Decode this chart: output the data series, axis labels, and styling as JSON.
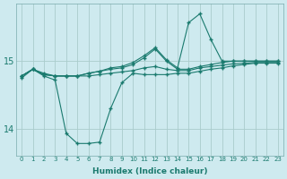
{
  "title": "",
  "xlabel": "Humidex (Indice chaleur)",
  "ylabel": "",
  "bg_color": "#ceeaef",
  "line_color": "#1a7a6e",
  "grid_color": "#aacccc",
  "xlim": [
    -0.5,
    23.5
  ],
  "ylim": [
    13.6,
    15.85
  ],
  "yticks": [
    14,
    15
  ],
  "xticks": [
    0,
    1,
    2,
    3,
    4,
    5,
    6,
    7,
    8,
    9,
    10,
    11,
    12,
    13,
    14,
    15,
    16,
    17,
    18,
    19,
    20,
    21,
    22,
    23
  ],
  "series": [
    {
      "x": [
        0,
        1,
        2,
        3,
        4,
        5,
        6,
        7,
        8,
        9,
        10,
        11,
        12,
        13,
        14,
        15,
        16,
        17,
        18,
        19,
        20,
        21,
        22,
        23
      ],
      "y": [
        14.78,
        14.88,
        14.8,
        14.78,
        14.78,
        14.78,
        14.78,
        14.8,
        14.82,
        14.84,
        14.86,
        14.9,
        14.92,
        14.88,
        14.86,
        14.86,
        14.9,
        14.92,
        14.94,
        14.96,
        14.97,
        14.98,
        14.98,
        14.98
      ]
    },
    {
      "x": [
        0,
        1,
        2,
        3,
        4,
        5,
        6,
        7,
        8,
        9,
        10,
        11,
        12,
        13,
        14,
        15,
        16,
        17,
        18,
        19,
        20,
        21,
        22,
        23
      ],
      "y": [
        14.78,
        14.88,
        14.8,
        14.78,
        14.78,
        14.78,
        14.82,
        14.85,
        14.88,
        14.9,
        14.95,
        15.05,
        15.18,
        15.0,
        14.88,
        14.88,
        14.92,
        14.95,
        14.98,
        15.0,
        15.0,
        15.0,
        15.0,
        15.0
      ]
    },
    {
      "x": [
        0,
        1,
        2,
        3,
        4,
        5,
        6,
        7,
        8,
        9,
        10,
        11,
        12,
        13,
        14,
        15,
        16,
        17,
        18,
        19,
        20,
        21,
        22,
        23
      ],
      "y": [
        14.78,
        14.88,
        14.82,
        14.78,
        14.78,
        14.78,
        14.82,
        14.85,
        14.9,
        14.92,
        14.98,
        15.08,
        15.2,
        15.02,
        14.9,
        15.57,
        15.7,
        15.32,
        15.0,
        15.0,
        15.0,
        15.0,
        15.0,
        15.0
      ]
    },
    {
      "x": [
        0,
        1,
        2,
        3,
        4,
        5,
        6,
        7,
        8,
        9,
        10,
        11,
        12,
        13,
        14,
        15,
        16,
        17,
        18,
        19,
        20,
        21,
        22,
        23
      ],
      "y": [
        14.75,
        14.88,
        14.78,
        14.72,
        13.93,
        13.78,
        13.78,
        13.8,
        14.3,
        14.68,
        14.82,
        14.8,
        14.8,
        14.8,
        14.82,
        14.82,
        14.85,
        14.88,
        14.9,
        14.93,
        14.95,
        14.97,
        14.97,
        14.97
      ]
    }
  ]
}
